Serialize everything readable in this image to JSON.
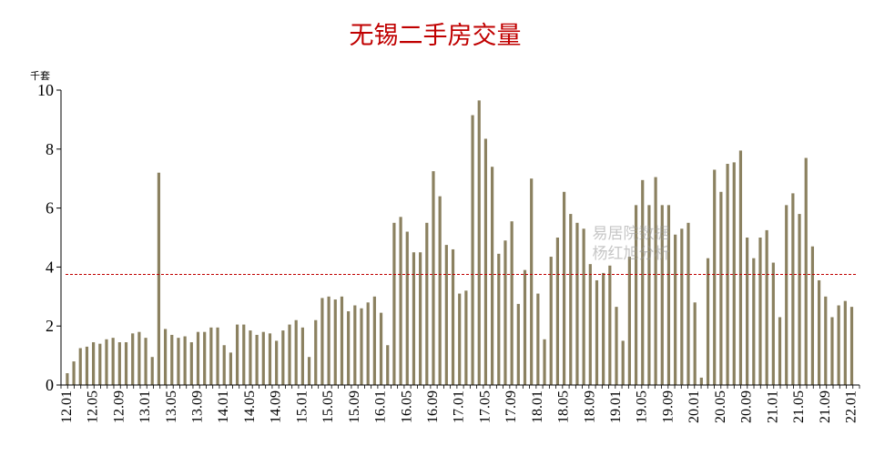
{
  "chart_data": {
    "type": "bar",
    "title": "无锡二手房交量",
    "unit": "千套",
    "ylim": [
      0,
      10
    ],
    "yticks": [
      0,
      2,
      4,
      6,
      8,
      10
    ],
    "start": "2012-01",
    "xtick_labels": [
      "12.01",
      "12.05",
      "12.09",
      "13.01",
      "13.05",
      "13.09",
      "14.01",
      "14.05",
      "14.09",
      "15.01",
      "15.05",
      "15.09",
      "16.01",
      "16.05",
      "16.09",
      "17.01",
      "17.05",
      "17.09",
      "18.01",
      "18.05",
      "18.09",
      "19.01",
      "19.05",
      "19.09",
      "20.01",
      "20.05",
      "20.09",
      "21.01",
      "21.05",
      "21.09",
      "22.01"
    ],
    "bar_color": "#8b8160",
    "reference_line": {
      "value": 3.75,
      "color": "#c00000",
      "style": "dashed"
    },
    "watermark": [
      "易居院数据",
      "杨红旭分析"
    ],
    "values": [
      0.4,
      0.8,
      1.25,
      1.3,
      1.45,
      1.4,
      1.55,
      1.6,
      1.45,
      1.45,
      1.75,
      1.8,
      1.6,
      0.95,
      7.2,
      1.9,
      1.7,
      1.6,
      1.65,
      1.45,
      1.8,
      1.8,
      1.95,
      1.95,
      1.35,
      1.1,
      2.05,
      2.05,
      1.85,
      1.7,
      1.8,
      1.75,
      1.5,
      1.85,
      2.05,
      2.2,
      1.95,
      0.95,
      2.2,
      2.95,
      3.0,
      2.9,
      3.0,
      2.5,
      2.7,
      2.6,
      2.8,
      3.0,
      2.45,
      1.35,
      5.5,
      5.7,
      5.2,
      4.5,
      4.5,
      5.5,
      7.25,
      6.4,
      4.75,
      4.6,
      3.1,
      3.2,
      9.15,
      9.65,
      8.35,
      7.4,
      4.45,
      4.9,
      5.55,
      2.75,
      3.9,
      7.0,
      3.1,
      1.55,
      4.35,
      5.0,
      6.55,
      5.8,
      5.5,
      5.3,
      4.1,
      3.55,
      3.8,
      4.05,
      2.65,
      1.5,
      4.35,
      6.1,
      6.95,
      6.1,
      7.05,
      6.1,
      6.1,
      5.1,
      5.3,
      5.5,
      2.8,
      0.25,
      4.3,
      7.3,
      6.55,
      7.5,
      7.55,
      7.95,
      5.0,
      4.3,
      5.0,
      5.25,
      4.15,
      2.3,
      6.1,
      6.5,
      5.8,
      7.7,
      4.7,
      3.55,
      3.0,
      2.3,
      2.7,
      2.85,
      2.65
    ]
  }
}
